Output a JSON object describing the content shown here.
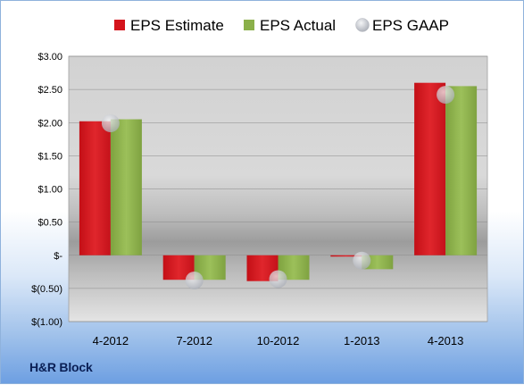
{
  "company": "H&R Block",
  "colors": {
    "estimate": "#d4141c",
    "actual": "#8bb04a",
    "gaap": "#c9ccd3"
  },
  "chart_data": {
    "type": "bar",
    "categories": [
      "4-2012",
      "7-2012",
      "10-2012",
      "1-2013",
      "4-2013"
    ],
    "series": [
      {
        "name": "EPS Estimate",
        "values": [
          2.02,
          -0.37,
          -0.39,
          -0.02,
          2.6
        ]
      },
      {
        "name": "EPS Actual",
        "values": [
          2.05,
          -0.37,
          -0.37,
          -0.21,
          2.55
        ]
      },
      {
        "name": "EPS GAAP",
        "values": [
          1.99,
          -0.38,
          -0.36,
          -0.08,
          2.42
        ]
      }
    ],
    "y_ticks": [
      "$3.00",
      "$2.50",
      "$2.00",
      "$1.50",
      "$1.00",
      "$0.50",
      "$-",
      "$(0.50)",
      "$(1.00)"
    ],
    "ylim": [
      -1.0,
      3.0
    ],
    "legend_position": "top",
    "grid": true
  }
}
